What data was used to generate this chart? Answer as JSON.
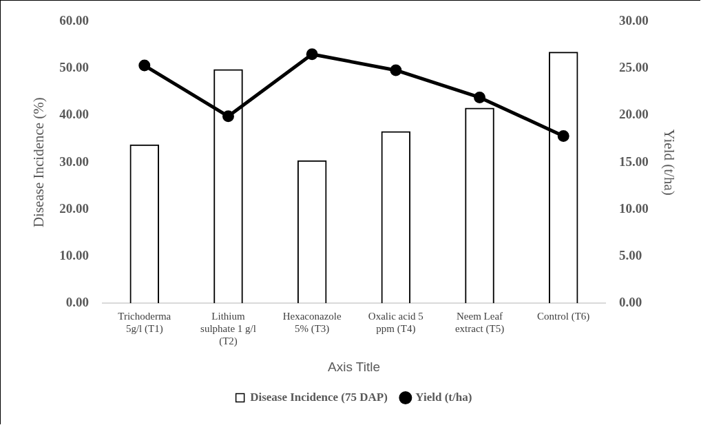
{
  "chart_data": {
    "type": "bar",
    "categories": [
      "Trichoderma 5g/l (T1)",
      "Lithium sulphate 1 g/l (T2)",
      "Hexaconazole 5% (T3)",
      "Oxalic acid 5 ppm (T4)",
      "Neem Leaf extract (T5)",
      "Control (T6)"
    ],
    "series": [
      {
        "name": "Disease Incidence (75 DAP)",
        "color": "#000000",
        "values": [
          33.8,
          49.8,
          30.4,
          36.6,
          41.6,
          53.5
        ]
      },
      {
        "name": "Yield (t/ha)",
        "type": "line",
        "axis": "y2",
        "color": "#000000",
        "values": [
          25.3,
          19.9,
          26.5,
          24.8,
          21.9,
          17.8
        ]
      }
    ],
    "xlabel": "Axis Title",
    "ylabel": "Disease Incidence (%)",
    "y2label": "Yield (t/ha)",
    "ylim": [
      0,
      60
    ],
    "yticks": [
      {
        "value": 0,
        "label": "0.00"
      },
      {
        "value": 10,
        "label": "10.00"
      },
      {
        "value": 20,
        "label": "20.00"
      },
      {
        "value": 30,
        "label": "30.00"
      },
      {
        "value": 40,
        "label": "40.00"
      },
      {
        "value": 50,
        "label": "50.00"
      },
      {
        "value": 60,
        "label": "60.00"
      }
    ],
    "y2lim": [
      0,
      30
    ],
    "y2ticks": [
      {
        "value": 0,
        "label": "0.00"
      },
      {
        "value": 5,
        "label": "5.00"
      },
      {
        "value": 10,
        "label": "10.00"
      },
      {
        "value": 15,
        "label": "15.00"
      },
      {
        "value": 20,
        "label": "20.00"
      },
      {
        "value": 25,
        "label": "25.00"
      },
      {
        "value": 30,
        "label": "30.00"
      }
    ],
    "grid": false,
    "legend": "bottom",
    "marker": "circle",
    "line_style": "solid"
  }
}
